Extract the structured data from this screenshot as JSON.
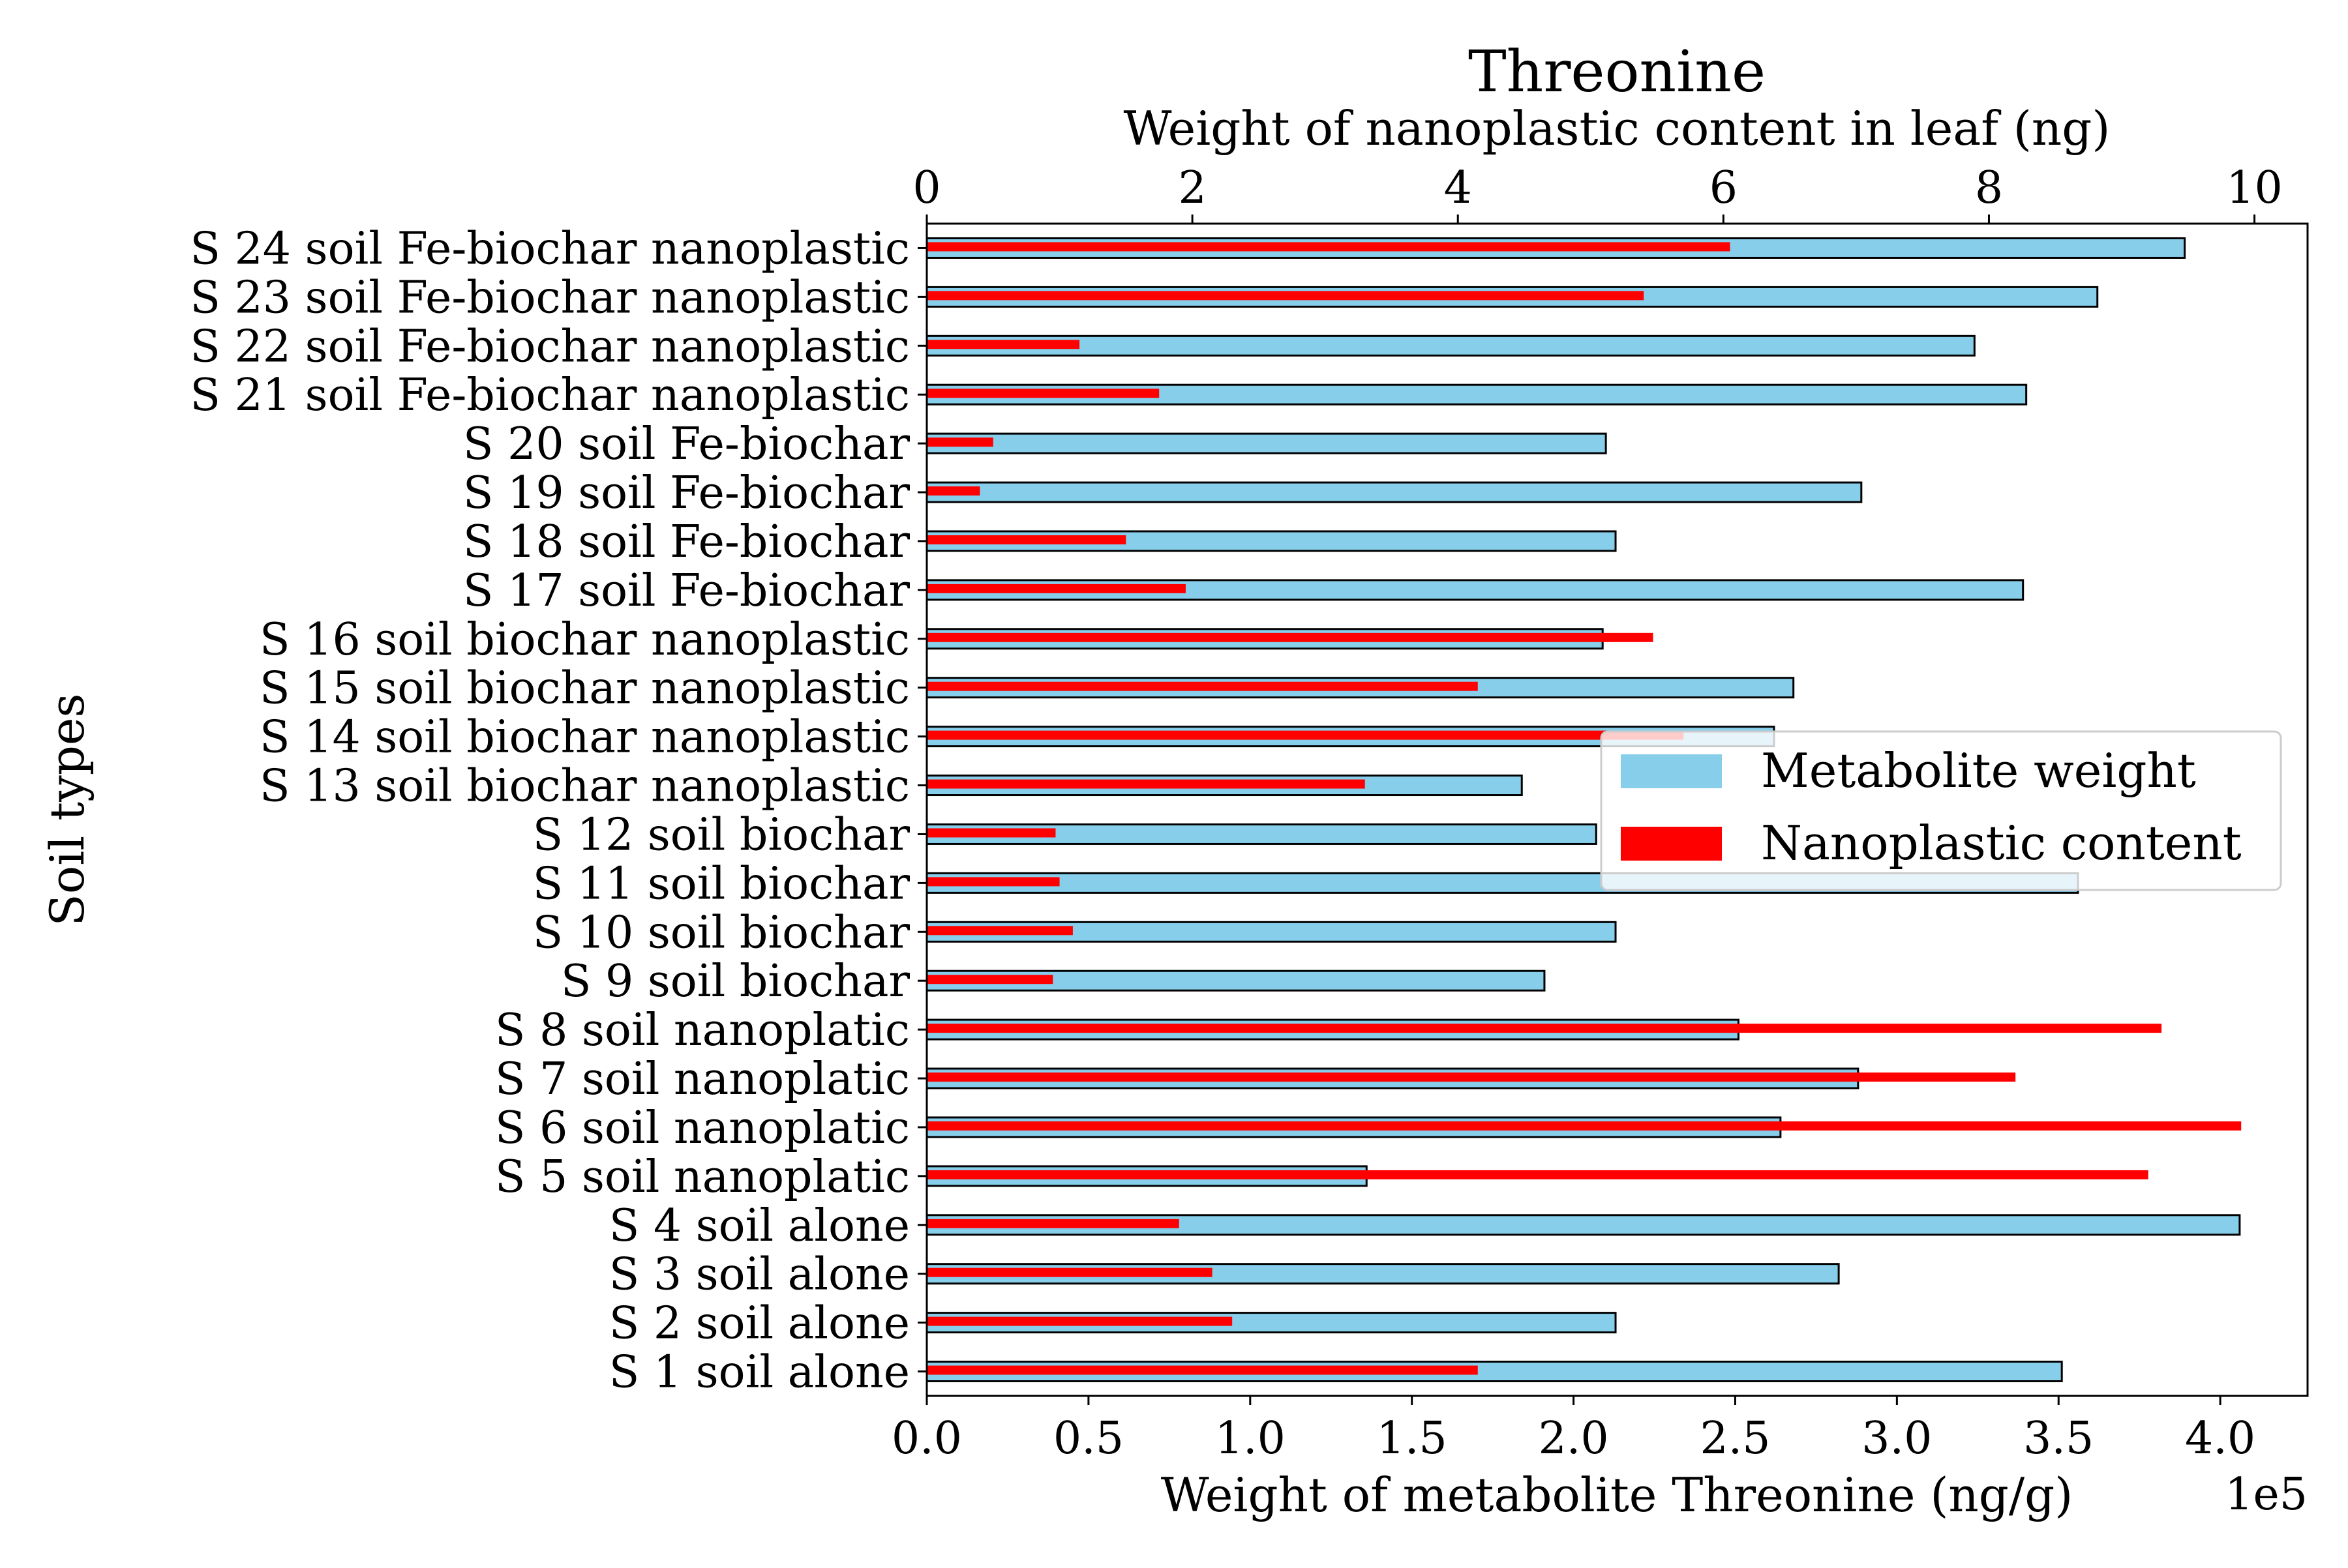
{
  "chart_data": {
    "type": "bar",
    "orientation": "horizontal",
    "title": "Threonine",
    "title_color": "#A52A2A",
    "ylabel": "Soil types",
    "xlabel_bottom": "Weight of metabolite Threonine (ng/g)",
    "xlabel_top": "Weight of nanoplastic content in leaf (ng)",
    "offset_text_bottom": "1e5",
    "bottom_ticks": [
      "0.0",
      "0.5",
      "1.0",
      "1.5",
      "2.0",
      "2.5",
      "3.0",
      "3.5",
      "4.0"
    ],
    "top_ticks": [
      "0",
      "2",
      "4",
      "6",
      "8",
      "10"
    ],
    "xlim_bottom": [
      0,
      427000
    ],
    "xlim_top": [
      0,
      10.4
    ],
    "categories": [
      "S 1 soil alone",
      "S 2 soil alone",
      "S 3 soil alone",
      "S 4 soil alone",
      "S 5 soil nanoplatic",
      "S 6 soil nanoplatic",
      "S 7 soil nanoplatic",
      "S 8 soil nanoplatic",
      "S 9 soil biochar",
      "S 10 soil biochar",
      "S 11 soil biochar",
      "S 12 soil biochar",
      "S 13 soil biochar nanoplastic",
      "S 14 soil biochar nanoplastic",
      "S 15 soil biochar nanoplastic",
      "S 16 soil biochar nanoplastic",
      "S 17 soil Fe-biochar",
      "S 18 soil Fe-biochar",
      "S 19 soil Fe-biochar",
      "S 20 soil Fe-biochar",
      "S 21 soil Fe-biochar nanoplastic",
      "S 22 soil Fe-biochar nanoplastic",
      "S 23 soil Fe-biochar nanoplastic",
      "S 24 soil Fe-biochar nanoplastic"
    ],
    "series": [
      {
        "name": "Metabolite weight",
        "axis": "bottom",
        "color": "#87CEEB",
        "edgecolor": "#000000",
        "values": [
          351000,
          213000,
          282000,
          406000,
          136000,
          264000,
          288000,
          251000,
          191000,
          213000,
          356000,
          207000,
          184000,
          262000,
          268000,
          209000,
          339000,
          213000,
          289000,
          210000,
          340000,
          324000,
          362000,
          389000
        ]
      },
      {
        "name": "Nanoplastic content",
        "axis": "top",
        "color": "#FF0000",
        "values": [
          4.15,
          2.3,
          2.15,
          1.9,
          9.2,
          9.9,
          8.2,
          9.3,
          0.95,
          1.1,
          1.0,
          0.97,
          3.3,
          5.7,
          4.15,
          5.47,
          1.95,
          1.5,
          0.4,
          0.5,
          1.75,
          1.15,
          5.4,
          6.05
        ]
      }
    ],
    "legend": {
      "position": "center-right",
      "entries": [
        "Metabolite weight",
        "Nanoplastic content"
      ]
    },
    "grid": false
  }
}
